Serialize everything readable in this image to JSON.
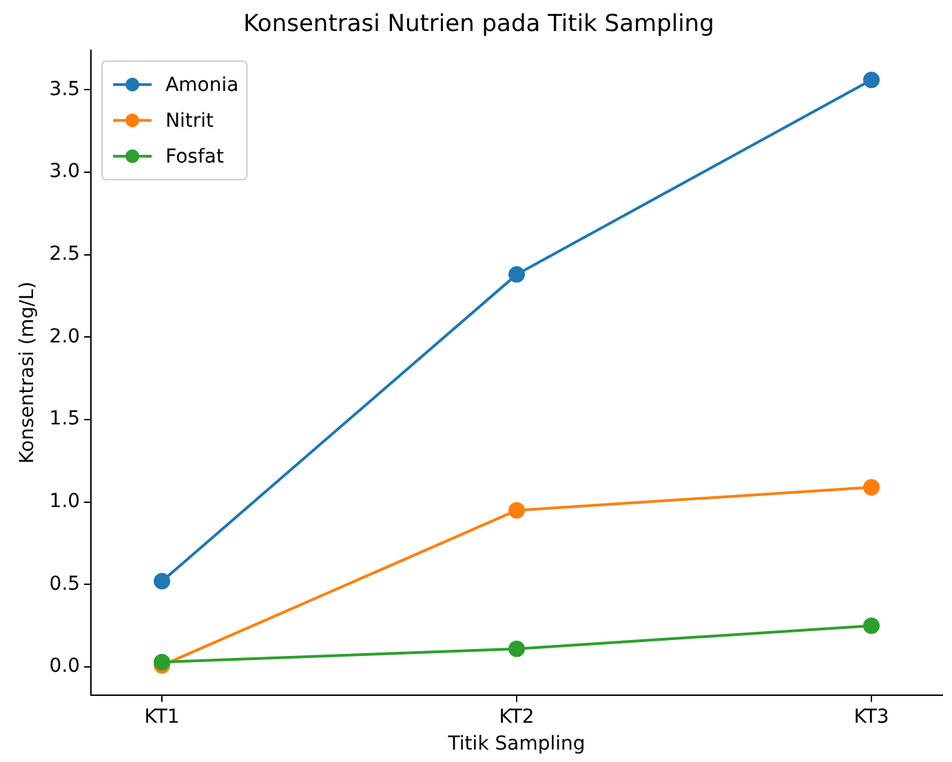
{
  "chart_data": {
    "type": "line",
    "title": "Konsentrasi Nutrien pada Titik Sampling",
    "xlabel": "Titik Sampling",
    "ylabel": "Konsentrasi (mg/L)",
    "categories": [
      "KT1",
      "KT2",
      "KT3"
    ],
    "series": [
      {
        "name": "Amonia",
        "color": "#1f77b4",
        "values": [
          0.52,
          2.38,
          3.56
        ]
      },
      {
        "name": "Nitrit",
        "color": "#ff7f0e",
        "values": [
          0.01,
          0.95,
          1.09
        ]
      },
      {
        "name": "Fosfat",
        "color": "#2ca02c",
        "values": [
          0.03,
          0.11,
          0.25
        ]
      }
    ],
    "ylim": [
      -0.17,
      3.74
    ],
    "yticks": [
      {
        "value": 0,
        "label": "0.0"
      },
      {
        "value": 0.5,
        "label": "0.5"
      },
      {
        "value": 1,
        "label": "1.0"
      },
      {
        "value": 1.5,
        "label": "1.5"
      },
      {
        "value": 2,
        "label": "2.0"
      },
      {
        "value": 2.5,
        "label": "2.5"
      },
      {
        "value": 3,
        "label": "3.0"
      },
      {
        "value": 3.5,
        "label": "3.5"
      }
    ],
    "grid": false,
    "legend": "top left",
    "marker": "circle",
    "line_style": "solid"
  }
}
